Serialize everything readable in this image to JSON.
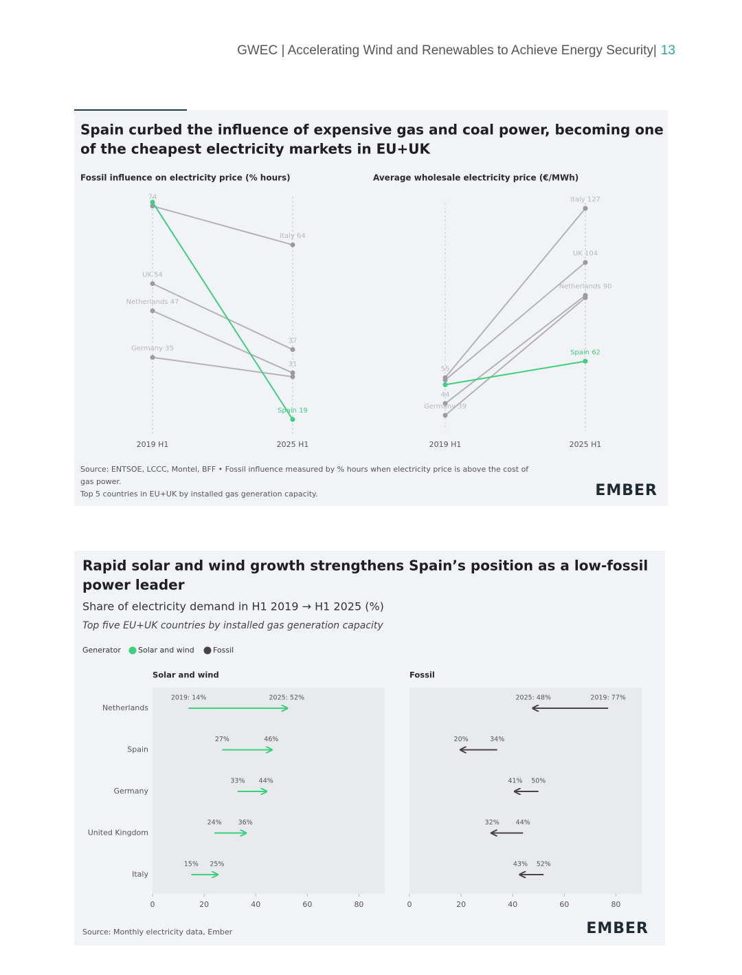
{
  "header": {
    "title": "GWEC | Accelerating Wind and Renewables to Achieve Energy Security|",
    "page": "13"
  },
  "figure_1": {
    "title_lines": [
      "Spain curbed the influence of expensive gas and coal power, becoming one",
      "of the cheapest electricity markets in EU+UK"
    ],
    "chart_data": [
      {
        "type": "slope",
        "title": "Fossil influence on electricity price (% hours)",
        "categories": [
          "2019 H1",
          "2025 H1"
        ],
        "series": [
          {
            "name": "Italy",
            "color": "#b3b3b6",
            "values": [
              74,
              64
            ],
            "value_labels": [
              "74",
              "Italy 64"
            ]
          },
          {
            "name": "UK",
            "color": "#b3b3b6",
            "values": [
              54,
              37
            ],
            "value_labels": [
              "UK 54",
              "37"
            ]
          },
          {
            "name": "Netherlands",
            "color": "#b3b3b6",
            "values": [
              47,
              31
            ],
            "value_labels": [
              "Netherlands 47",
              "31"
            ]
          },
          {
            "name": "Germany",
            "color": "#b3b3b6",
            "values": [
              35,
              30
            ],
            "value_labels": [
              "Germany 35",
              null
            ]
          },
          {
            "name": "Spain",
            "color": "#3ccf7d",
            "values": [
              75,
              19
            ],
            "value_labels": [
              null,
              "Spain 19"
            ]
          }
        ]
      },
      {
        "type": "slope",
        "title": "Average wholesale electricity price (€/MWh)",
        "categories": [
          "2019 H1",
          "2025 H1"
        ],
        "series": [
          {
            "name": "Italy",
            "color": "#b3b3b6",
            "values": [
              55,
              127
            ],
            "value_labels": [
              "55",
              "Italy 127"
            ]
          },
          {
            "name": "UK",
            "color": "#b3b3b6",
            "values": [
              54,
              104
            ],
            "value_labels": [
              null,
              "UK 104"
            ]
          },
          {
            "name": "Netherlands",
            "color": "#b3b3b6",
            "values": [
              44,
              90
            ],
            "value_labels": [
              "44",
              "Netherlands 90"
            ]
          },
          {
            "name": "Germany",
            "color": "#b3b3b6",
            "values": [
              39,
              89
            ],
            "value_labels": [
              "Germany 39",
              null
            ]
          },
          {
            "name": "Spain",
            "color": "#3ccf7d",
            "values": [
              52,
              62
            ],
            "value_labels": [
              null,
              "Spain 62"
            ]
          }
        ]
      }
    ],
    "source_lines": [
      "Source: ENTSOE, LCCC, Montel, BFF • Fossil influence measured by % hours when electricity price is above the cost of",
      "gas power.",
      "Top 5 countries in EU+UK by installed gas generation capacity."
    ],
    "logo": "EMBER"
  },
  "figure_2": {
    "title_lines": [
      "Rapid solar and wind growth strengthens Spain’s position as a low-fossil",
      "power leader"
    ],
    "subtitle": "Share of electricity demand in H1 2019 → H1 2025 (%)",
    "note": "Top five EU+UK countries by installed gas generation capacity",
    "legend_title": "Generator",
    "chart_data": {
      "type": "arrow",
      "categories": [
        "Netherlands",
        "Spain",
        "Germany",
        "United Kingdom",
        "Italy"
      ],
      "xlim": [
        0,
        90
      ],
      "xticks": [
        0,
        20,
        40,
        60,
        80
      ],
      "series": [
        {
          "name": "Solar and wind",
          "color": "#3ccf7d",
          "from": [
            14,
            27,
            33,
            24,
            15
          ],
          "to": [
            52,
            46,
            44,
            36,
            25
          ],
          "from_labels": [
            "2019: 14%",
            "27%",
            "33%",
            "24%",
            "15%"
          ],
          "to_labels": [
            "2025: 52%",
            "46%",
            "44%",
            "36%",
            "25%"
          ]
        },
        {
          "name": "Fossil",
          "color": "#4a4346",
          "from": [
            77,
            34,
            50,
            44,
            52
          ],
          "to": [
            48,
            20,
            41,
            32,
            43
          ],
          "from_labels": [
            "2019: 77%",
            "34%",
            "50%",
            "44%",
            "52%"
          ],
          "to_labels": [
            "2025: 48%",
            "20%",
            "41%",
            "32%",
            "43%"
          ]
        }
      ]
    },
    "source": "Source: Monthly electricity data, Ember",
    "logo": "EMBER"
  }
}
